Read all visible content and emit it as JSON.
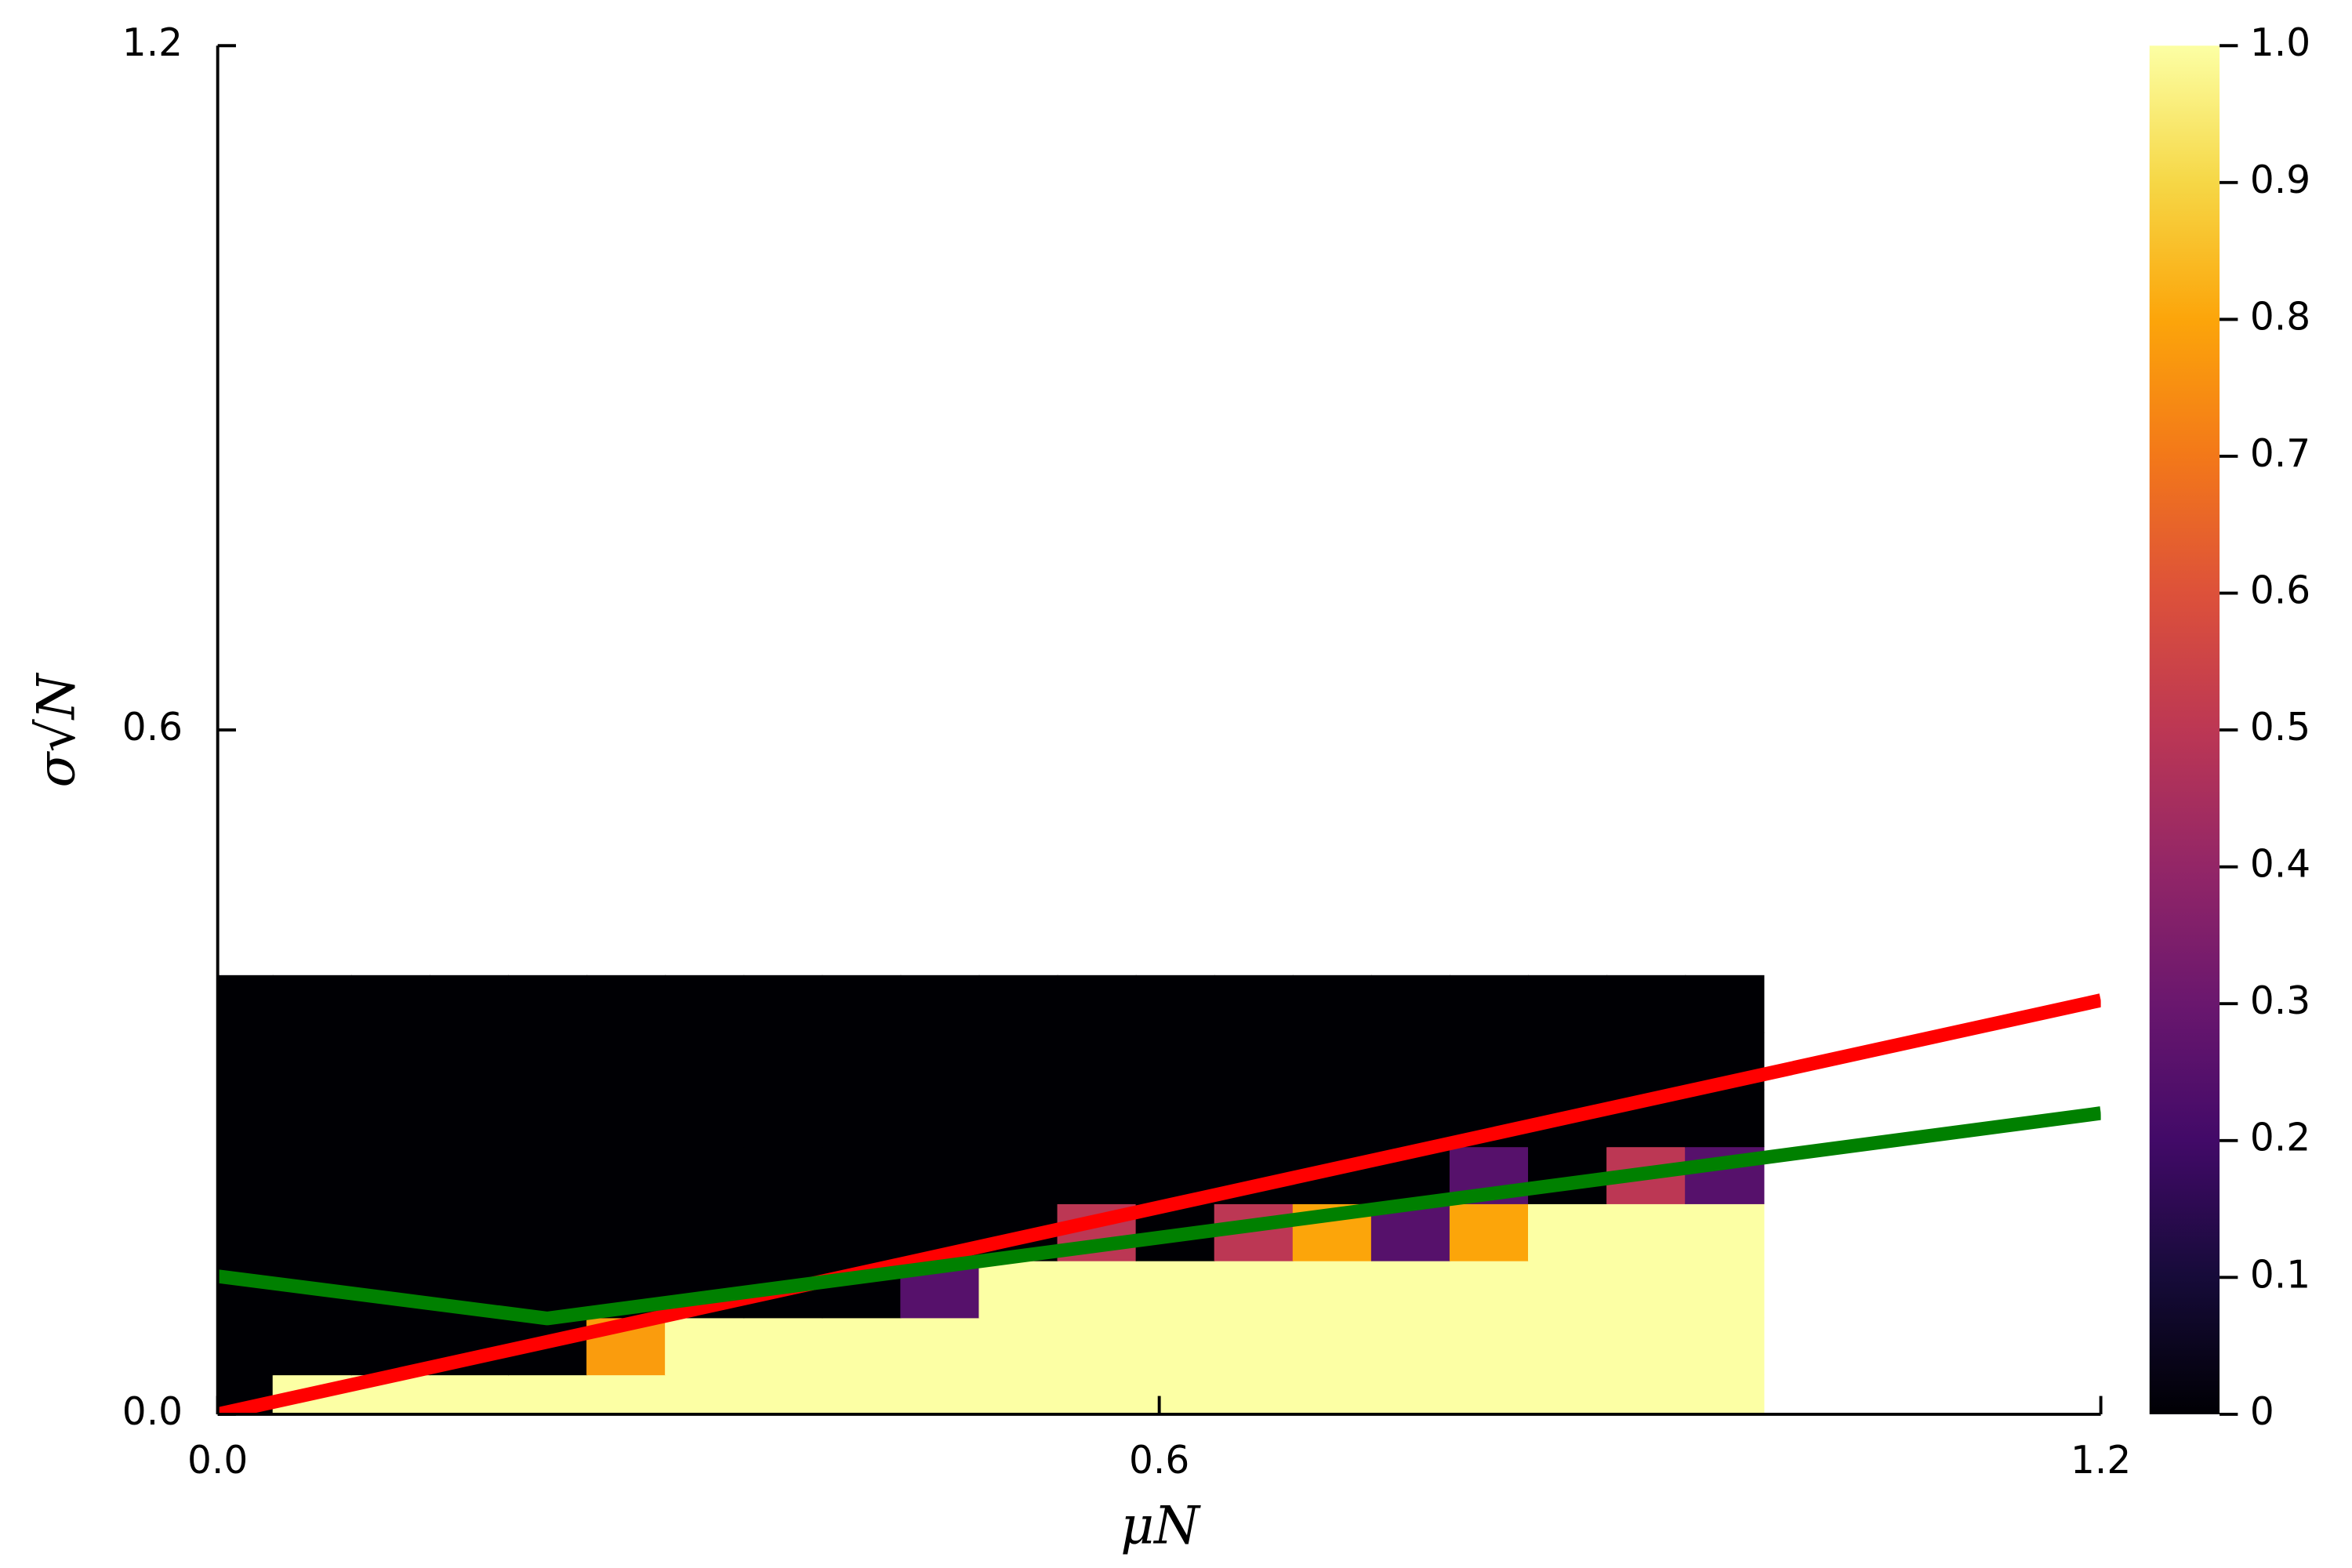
{
  "chart_data": {
    "type": "heatmap",
    "xlabel": "μN",
    "ylabel": "σ√N",
    "x": [
      0.01,
      0.06,
      0.11,
      0.16,
      0.21,
      0.26,
      0.31,
      0.36,
      0.41,
      0.46,
      0.51,
      0.56,
      0.61,
      0.66,
      0.71,
      0.76,
      0.81,
      0.86,
      0.91,
      0.96
    ],
    "y": [
      0.01,
      0.06,
      0.11,
      0.16,
      0.21,
      0.26,
      0.31,
      0.36
    ],
    "z": [
      [
        0,
        1,
        1,
        1,
        1,
        1,
        1,
        1,
        1,
        1,
        1,
        1,
        1,
        1,
        1,
        1,
        1,
        1,
        1,
        1
      ],
      [
        0,
        0,
        0,
        0,
        0,
        0.78,
        1,
        1,
        1,
        1,
        1,
        1,
        1,
        1,
        1,
        1,
        1,
        1,
        1,
        1
      ],
      [
        0,
        0,
        0,
        0,
        0,
        0,
        0,
        0,
        0,
        0.25,
        1,
        1,
        1,
        1,
        1,
        1,
        1,
        1,
        1,
        1
      ],
      [
        0,
        0,
        0,
        0,
        0,
        0,
        0,
        0,
        0,
        0,
        0,
        0.5,
        0,
        0.5,
        0.8,
        0.25,
        0.8,
        1,
        1,
        1
      ],
      [
        0,
        0,
        0,
        0,
        0,
        0,
        0,
        0,
        0,
        0,
        0,
        0,
        0,
        0,
        0,
        0,
        0.25,
        0,
        0.5,
        0.25
      ],
      [
        0,
        0,
        0,
        0,
        0,
        0,
        0,
        0,
        0,
        0,
        0,
        0,
        0,
        0,
        0,
        0,
        0,
        0,
        0,
        0
      ],
      [
        0,
        0,
        0,
        0,
        0,
        0,
        0,
        0,
        0,
        0,
        0,
        0,
        0,
        0,
        0,
        0,
        0,
        0,
        0,
        0
      ],
      [
        0,
        0,
        0,
        0,
        0,
        0,
        0,
        0,
        0,
        0,
        0,
        0,
        0,
        0,
        0,
        0,
        0,
        0,
        0,
        0
      ]
    ],
    "colormap": "inferno",
    "zlim": [
      0,
      1
    ],
    "zticks": [
      0,
      0.1,
      0.2,
      0.3,
      0.4,
      0.5,
      0.6,
      0.7,
      0.8,
      0.9,
      {
        "value": 1,
        "label": "1.0"
      }
    ],
    "xlim": [
      0,
      1.2
    ],
    "ylim": [
      0,
      1.2
    ],
    "xticks": [
      {
        "value": 0,
        "label": "0.0"
      },
      0.6,
      1.2
    ],
    "yticks": [
      {
        "value": 0,
        "label": "0.0"
      },
      0.6,
      1.2
    ],
    "series": [
      {
        "color": "#ff0000",
        "x": [
          0,
          1.2
        ],
        "y": [
          0,
          0.363
        ]
      },
      {
        "color": "#008000",
        "x": [
          0,
          0.21,
          1.2
        ],
        "y": [
          0.121,
          0.084,
          0.264
        ]
      }
    ]
  }
}
